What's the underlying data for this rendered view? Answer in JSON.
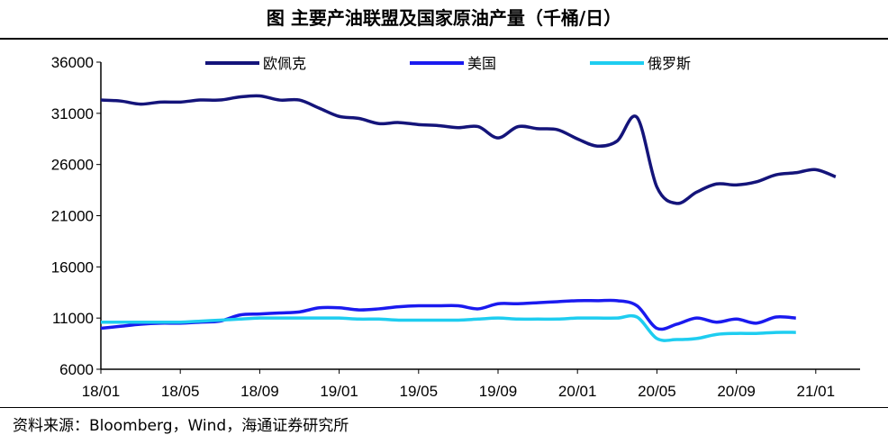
{
  "chart_data": {
    "type": "line",
    "title": "图  主要产油联盟及国家原油产量（千桶/日）",
    "source": "资料来源：Bloomberg，Wind，海通证券研究所",
    "xlabel": "",
    "ylabel": "",
    "ylim": [
      6000,
      36000
    ],
    "yticks": [
      "6000",
      "11000",
      "16000",
      "21000",
      "26000",
      "31000",
      "36000"
    ],
    "xticks": [
      "18/01",
      "18/05",
      "18/09",
      "19/01",
      "19/05",
      "19/09",
      "20/01",
      "20/05",
      "20/09",
      "21/01"
    ],
    "x_start": "18/01",
    "grid": false,
    "legend_position": "top",
    "series": [
      {
        "name": "欧佩克",
        "color": "#14147a",
        "values": [
          32300,
          32200,
          31900,
          32100,
          32100,
          32300,
          32300,
          32600,
          32700,
          32300,
          32300,
          31500,
          30700,
          30500,
          30000,
          30100,
          29900,
          29800,
          29600,
          29700,
          28600,
          29700,
          29500,
          29400,
          28500,
          27800,
          28300,
          30600,
          23800,
          22200,
          23300,
          24100,
          24000,
          24300,
          25000,
          25200,
          25500,
          24800
        ]
      },
      {
        "name": "美国",
        "color": "#1a1aef",
        "values": [
          10000,
          10200,
          10400,
          10500,
          10500,
          10600,
          10700,
          11300,
          11400,
          11500,
          11600,
          12000,
          12000,
          11800,
          11900,
          12100,
          12200,
          12200,
          12200,
          11900,
          12400,
          12400,
          12500,
          12600,
          12700,
          12700,
          12700,
          12200,
          10000,
          10400,
          11000,
          10600,
          10900,
          10500,
          11100,
          11000
        ]
      },
      {
        "name": "俄罗斯",
        "color": "#1ecdf0",
        "values": [
          10600,
          10600,
          10600,
          10600,
          10600,
          10700,
          10800,
          10900,
          11000,
          11000,
          11000,
          11000,
          11000,
          10900,
          10900,
          10800,
          10800,
          10800,
          10800,
          10900,
          11000,
          10900,
          10900,
          10900,
          11000,
          11000,
          11000,
          11100,
          9000,
          8900,
          9000,
          9400,
          9500,
          9500,
          9600,
          9600
        ]
      }
    ]
  }
}
